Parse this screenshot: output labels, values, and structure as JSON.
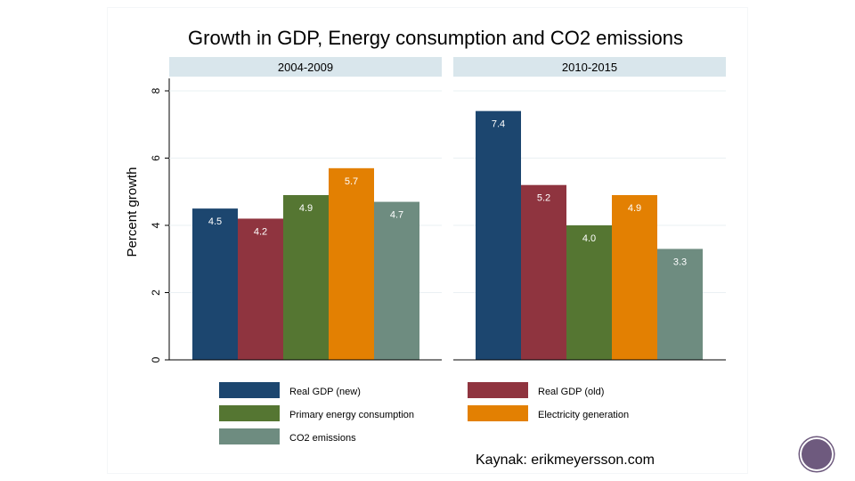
{
  "chart_data": {
    "type": "bar",
    "title": "Growth in GDP, Energy consumption and CO2 emissions",
    "ylabel": "Percent growth",
    "xlabel": "",
    "ylim": [
      0,
      8
    ],
    "yticks": [
      "0",
      "2",
      "4",
      "6",
      "8"
    ],
    "grid": true,
    "legend_position": "bottom",
    "panels": [
      {
        "label": "2004-2009",
        "series": [
          {
            "name": "Real GDP (new)",
            "value": 4.5,
            "label": "4.5"
          },
          {
            "name": "Real GDP (old)",
            "value": 4.2,
            "label": "4.2"
          },
          {
            "name": "Primary energy consumption",
            "value": 4.9,
            "label": "4.9"
          },
          {
            "name": "Electricity generation",
            "value": 5.7,
            "label": "5.7"
          },
          {
            "name": "CO2 emissions",
            "value": 4.7,
            "label": "4.7"
          }
        ]
      },
      {
        "label": "2010-2015",
        "series": [
          {
            "name": "Real GDP (new)",
            "value": 7.4,
            "label": "7.4"
          },
          {
            "name": "Real GDP (old)",
            "value": 5.2,
            "label": "5.2"
          },
          {
            "name": "Primary energy consumption",
            "value": 4.0,
            "label": "4.0"
          },
          {
            "name": "Electricity generation",
            "value": 4.9,
            "label": "4.9"
          },
          {
            "name": "CO2 emissions",
            "value": 3.3,
            "label": "3.3"
          }
        ]
      }
    ],
    "legend": [
      {
        "name": "Real GDP (new)",
        "color": "#1c466f"
      },
      {
        "name": "Real GDP (old)",
        "color": "#8f343f"
      },
      {
        "name": "Primary energy consumption",
        "color": "#557632"
      },
      {
        "name": "Electricity generation",
        "color": "#e38002"
      },
      {
        "name": "CO2 emissions",
        "color": "#6e8c80"
      }
    ],
    "colors": {
      "strip_background": "#d9e6ec",
      "gridline": "#eaf0f3",
      "axis": "#000000"
    }
  },
  "source": "Kaynak: erikmeyersson.com",
  "slide_indicator": {
    "color": "#6e5a7e"
  }
}
